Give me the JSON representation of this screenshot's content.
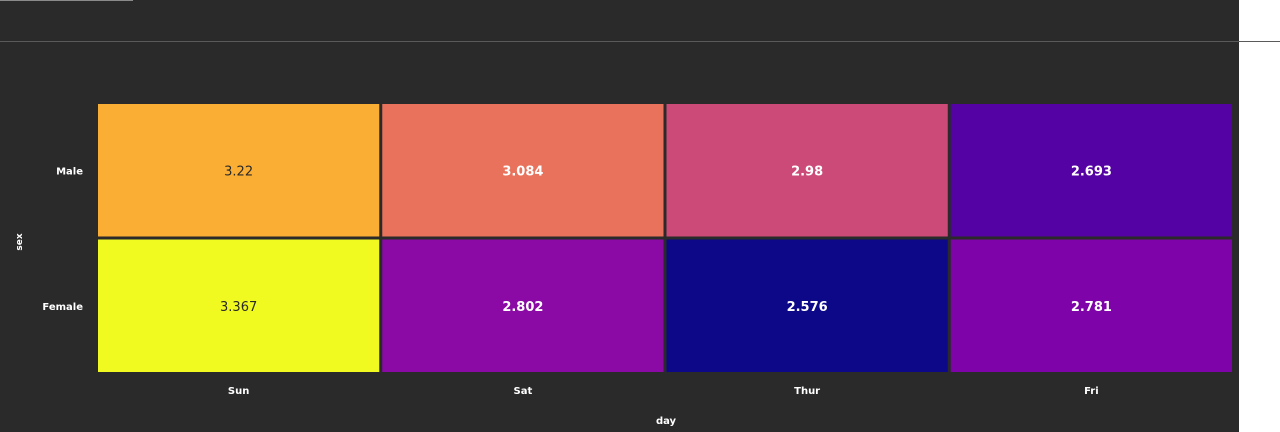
{
  "chart_data": {
    "type": "heatmap",
    "title": "",
    "xlabel": "day",
    "ylabel": "sex",
    "x_categories": [
      "Sun",
      "Sat",
      "Thur",
      "Fri"
    ],
    "y_categories": [
      "Male",
      "Female"
    ],
    "values": [
      [
        "3.22",
        "3.084",
        "2.98",
        "2.693"
      ],
      [
        "3.367",
        "2.802",
        "2.576",
        "2.781"
      ]
    ],
    "colorscale": "plasma",
    "cell_colors": [
      [
        "#fbae34",
        "#e8725b",
        "#cc4a77",
        "#5402a3"
      ],
      [
        "#f0f920",
        "#8b0aa5",
        "#0d0887",
        "#7e03a8"
      ]
    ],
    "text_colors": [
      [
        "#2a2a2a",
        "#ffffff",
        "#ffffff",
        "#ffffff"
      ],
      [
        "#2a2a2a",
        "#ffffff",
        "#ffffff",
        "#ffffff"
      ]
    ],
    "colors": {
      "background": "#2a2a2a",
      "axis_text": "#ffffff",
      "cell_gap": "#2a2a2a"
    }
  }
}
